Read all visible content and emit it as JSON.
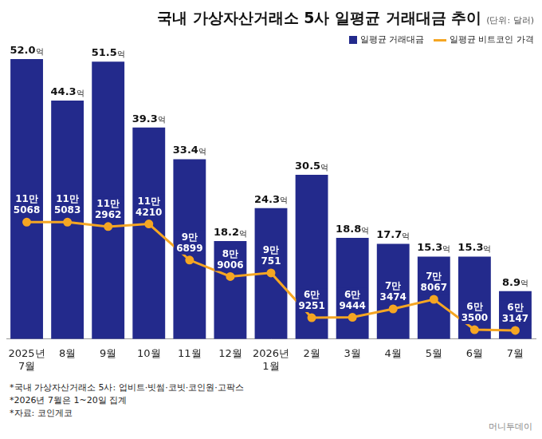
{
  "chart_data": {
    "type": "bar",
    "title": "국내 가상자산거래소 5사 일평균 거래대금 추이",
    "subtitle": "(단위: 달러)",
    "categories": [
      "2025년 7월",
      "8월",
      "9월",
      "10월",
      "11월",
      "12월",
      "2026년 1월",
      "2월",
      "3월",
      "4월",
      "5월",
      "6월",
      "7월"
    ],
    "series": [
      {
        "name": "일평균 거래대금",
        "type": "bar",
        "color": "#232a8c",
        "values": [
          52.0,
          44.3,
          51.5,
          39.3,
          33.4,
          18.2,
          24.3,
          30.5,
          18.8,
          17.7,
          15.3,
          15.3,
          8.9
        ],
        "value_labels": [
          "52.0억",
          "44.3억",
          "51.5억",
          "39.3억",
          "33.4억",
          "18.2억",
          "24.3억",
          "30.5억",
          "18.8억",
          "17.7억",
          "15.3억",
          "15.3억",
          "8.9억"
        ]
      },
      {
        "name": "일평균 비트코인 가격",
        "type": "line",
        "color": "#f5a623",
        "axis": "y2",
        "marker": "circle",
        "values": [
          115068,
          115083,
          112962,
          114210,
          96899,
          89006,
          90751,
          69251,
          69444,
          73474,
          78067,
          63500,
          63147
        ],
        "value_labels": [
          "11만 5068",
          "11만 5083",
          "11만 2962",
          "11만 4210",
          "9만 6899",
          "8만 9006",
          "9만 751",
          "6만 9251",
          "6만 9444",
          "7만 3474",
          "7만 8067",
          "6만 3500",
          "6만 3147"
        ]
      }
    ],
    "ylim": [
      0,
      60
    ],
    "y2lim": [
      59000,
      214000
    ],
    "grid": false,
    "legend": "top-right",
    "data_labels": true,
    "tick_labels": "x",
    "footnotes": [
      "*국내 가상자산거래소 5사: 업비트·빗썸·코빗·코인원·고팍스",
      "*2026년 7월은 1~20일 집계",
      "*자료: 코인게코"
    ],
    "credit": "머니투데이"
  }
}
